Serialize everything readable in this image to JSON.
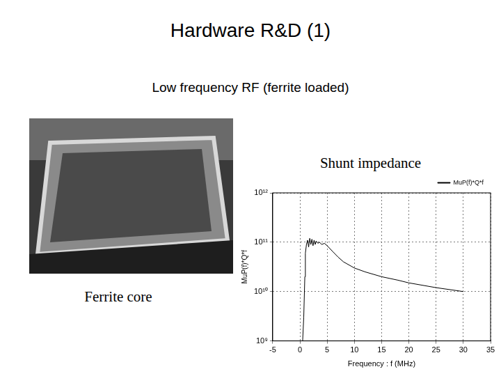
{
  "slide": {
    "title": "Hardware R&D (1)",
    "subtitle": "Low frequency RF (ferrite loaded)",
    "photo_caption": "Ferrite core"
  },
  "chart_data": {
    "type": "line",
    "title": "Shunt impedance",
    "x_label": "Frequency : f (MHz)",
    "y_label": "MuP(f)*Q*f",
    "x": [
      0.5,
      0.7,
      0.9,
      1.0,
      1.2,
      1.4,
      1.6,
      1.8,
      2.0,
      2.2,
      2.4,
      2.6,
      2.8,
      3.0,
      3.3,
      3.6,
      4.0,
      4.5,
      5,
      6,
      7,
      8,
      10,
      12,
      15,
      18,
      20,
      25,
      30
    ],
    "series": [
      {
        "name": "MuP(f)*Q*f",
        "color": "#000000",
        "values": [
          1000000000.0,
          3000000000.0,
          20000000000.0,
          60000000000.0,
          90000000000.0,
          110000000000.0,
          80000000000.0,
          120000000000.0,
          90000000000.0,
          115000000000.0,
          85000000000.0,
          110000000000.0,
          90000000000.0,
          105000000000.0,
          95000000000.0,
          100000000000.0,
          90000000000.0,
          95000000000.0,
          85000000000.0,
          65000000000.0,
          50000000000.0,
          40000000000.0,
          30000000000.0,
          25000000000.0,
          20000000000.0,
          17000000000.0,
          15000000000.0,
          12000000000.0,
          10000000000.0
        ]
      }
    ],
    "xlim": [
      -5,
      35
    ],
    "xticks": [
      -5,
      0,
      5,
      10,
      15,
      20,
      25,
      30,
      35
    ],
    "ylim": [
      1000000000.0,
      1000000000000.0
    ],
    "yticks": [
      {
        "value": 1000000000.0,
        "label": "10⁹"
      },
      {
        "value": 10000000000.0,
        "label": "10¹⁰"
      },
      {
        "value": 100000000000.0,
        "label": "10¹¹"
      },
      {
        "value": 1000000000000.0,
        "label": "10¹²"
      }
    ],
    "log": "y",
    "grid": true,
    "legend": "upper right"
  }
}
